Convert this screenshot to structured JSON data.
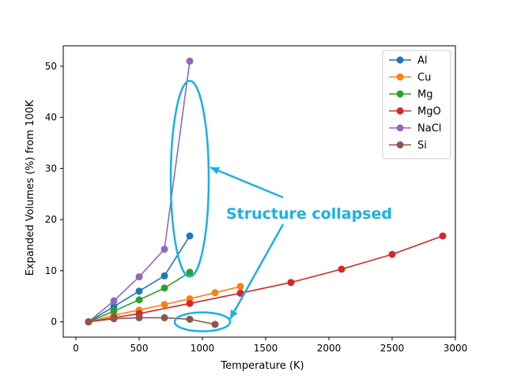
{
  "chart_data": {
    "type": "line",
    "title": "",
    "xlabel": "Temperature (K)",
    "ylabel": "Expanded Volumes (%) from 100K",
    "xlim": [
      -100,
      3000
    ],
    "ylim": [
      -3,
      54
    ],
    "x_ticks": [
      "0",
      "500",
      "1000",
      "1500",
      "2000",
      "2500",
      "3000"
    ],
    "y_ticks": [
      "0",
      "10",
      "20",
      "30",
      "40",
      "50"
    ],
    "grid": false,
    "legend_position": "top-right",
    "series": [
      {
        "name": "Al",
        "color": "#1f77b4",
        "x": [
          100,
          300,
          500,
          700,
          900
        ],
        "y": [
          0,
          3.0,
          6.0,
          9.0,
          16.8
        ]
      },
      {
        "name": "Cu",
        "color": "#ff7f0e",
        "x": [
          100,
          300,
          500,
          700,
          900,
          1100,
          1300
        ],
        "y": [
          0,
          1.3,
          2.3,
          3.4,
          4.5,
          5.7,
          6.9
        ]
      },
      {
        "name": "Mg",
        "color": "#2ca02c",
        "x": [
          100,
          300,
          500,
          700,
          900
        ],
        "y": [
          0,
          2.1,
          4.3,
          6.6,
          9.7
        ]
      },
      {
        "name": "MgO",
        "color": "#d62728",
        "x": [
          100,
          300,
          500,
          900,
          1300,
          1700,
          2100,
          2500,
          2900
        ],
        "y": [
          0,
          0.8,
          1.6,
          3.6,
          5.6,
          7.7,
          10.3,
          13.2,
          16.8
        ]
      },
      {
        "name": "NaCl",
        "color": "#9467bd",
        "x": [
          100,
          300,
          500,
          700,
          900
        ],
        "y": [
          0,
          4.1,
          8.8,
          14.2,
          51.0
        ]
      },
      {
        "name": "Si",
        "color": "#8c564b",
        "x": [
          100,
          300,
          500,
          700,
          900,
          1100
        ],
        "y": [
          0,
          0.6,
          0.8,
          0.8,
          0.5,
          -0.5
        ]
      }
    ],
    "annotation": {
      "text": "Structure collapsed",
      "color": "#1ab0e8"
    }
  }
}
